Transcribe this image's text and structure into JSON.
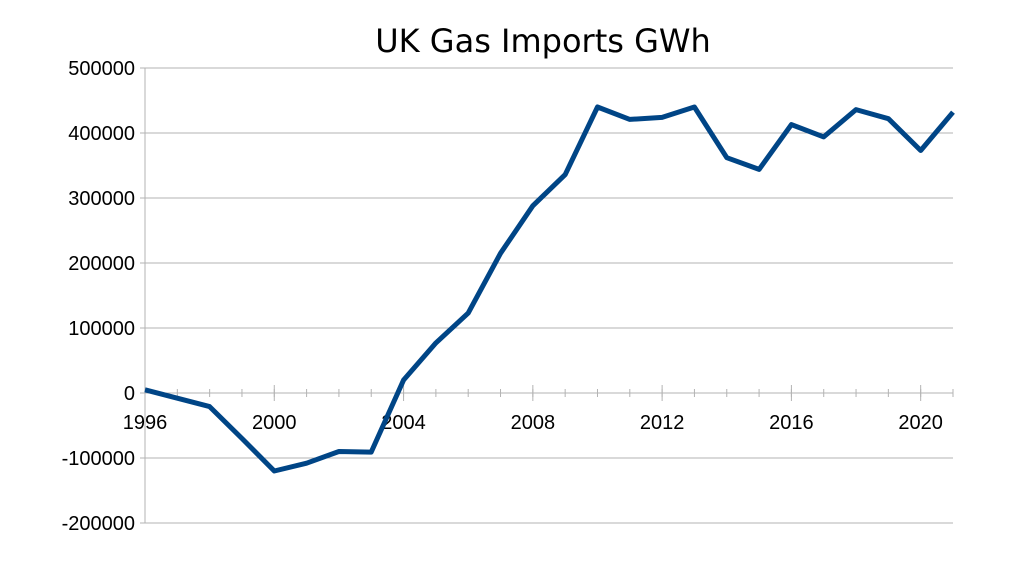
{
  "chart_data": {
    "type": "line",
    "title": "UK Gas Imports GWh",
    "xlabel": "",
    "ylabel": "",
    "xlim": [
      1996,
      2021
    ],
    "ylim": [
      -200000,
      500000
    ],
    "y_ticks": [
      500000,
      400000,
      300000,
      200000,
      100000,
      0,
      -100000,
      -200000
    ],
    "y_tick_labels": [
      "500000",
      "400000",
      "300000",
      "200000",
      "100000",
      "0",
      "-100000",
      "-200000"
    ],
    "x_ticks": [
      1996,
      2000,
      2004,
      2008,
      2012,
      2016,
      2020
    ],
    "x_tick_labels": [
      "1996",
      "2000",
      "2004",
      "2008",
      "2012",
      "2016",
      "2020"
    ],
    "grid": "horizontal",
    "legend": "none",
    "line_color": "#004586",
    "series": [
      {
        "x": [
          1996,
          1997,
          1998,
          1999,
          2000,
          2001,
          2002,
          2003,
          2004,
          2005,
          2006,
          2007,
          2008,
          2009,
          2010,
          2011,
          2012,
          2013,
          2014,
          2015,
          2016,
          2017,
          2018,
          2019,
          2020,
          2021
        ],
        "values": [
          5000,
          -8000,
          -21000,
          -70000,
          -120000,
          -108000,
          -90000,
          -91000,
          20000,
          77000,
          123000,
          215000,
          288000,
          336000,
          440000,
          421000,
          424000,
          440000,
          362000,
          344000,
          413000,
          394000,
          436000,
          422000,
          373000,
          432000
        ]
      }
    ]
  }
}
